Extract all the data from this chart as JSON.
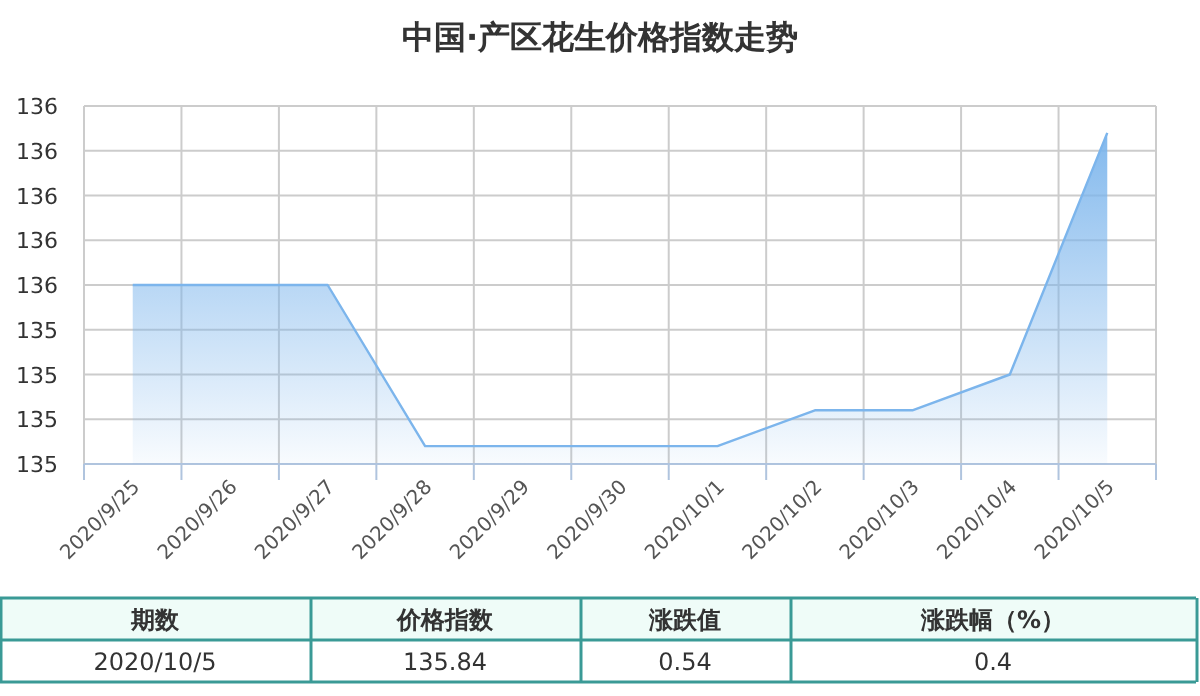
{
  "chart_data": {
    "type": "area",
    "title": "中国·产区花生价格指数走势",
    "categories": [
      "2020/9/25",
      "2020/9/26",
      "2020/9/27",
      "2020/9/28",
      "2020/9/29",
      "2020/9/30",
      "2020/10/1",
      "2020/10/2",
      "2020/10/3",
      "2020/10/4",
      "2020/10/5"
    ],
    "series": [
      {
        "color": "#7cb5ec",
        "values": [
          135.5,
          135.5,
          135.5,
          135.14,
          135.14,
          135.14,
          135.14,
          135.22,
          135.22,
          135.3,
          135.84
        ]
      }
    ],
    "ylim": [
      135.1,
      135.9
    ],
    "yticks": [
      {
        "value": 135.1,
        "label": "135"
      },
      {
        "value": 135.2,
        "label": "135"
      },
      {
        "value": 135.3,
        "label": "135"
      },
      {
        "value": 135.4,
        "label": "135"
      },
      {
        "value": 135.5,
        "label": "136"
      },
      {
        "value": 135.6,
        "label": "136"
      },
      {
        "value": 135.7,
        "label": "136"
      },
      {
        "value": 135.8,
        "label": "136"
      },
      {
        "value": 135.9,
        "label": "136"
      }
    ],
    "grid": true,
    "marker": "none",
    "annotations": [
      "期数",
      "价格指数",
      "涨跌值",
      "涨跌幅（%）",
      "2020/10/5",
      "135.84",
      "0.54",
      "0.4"
    ]
  }
}
